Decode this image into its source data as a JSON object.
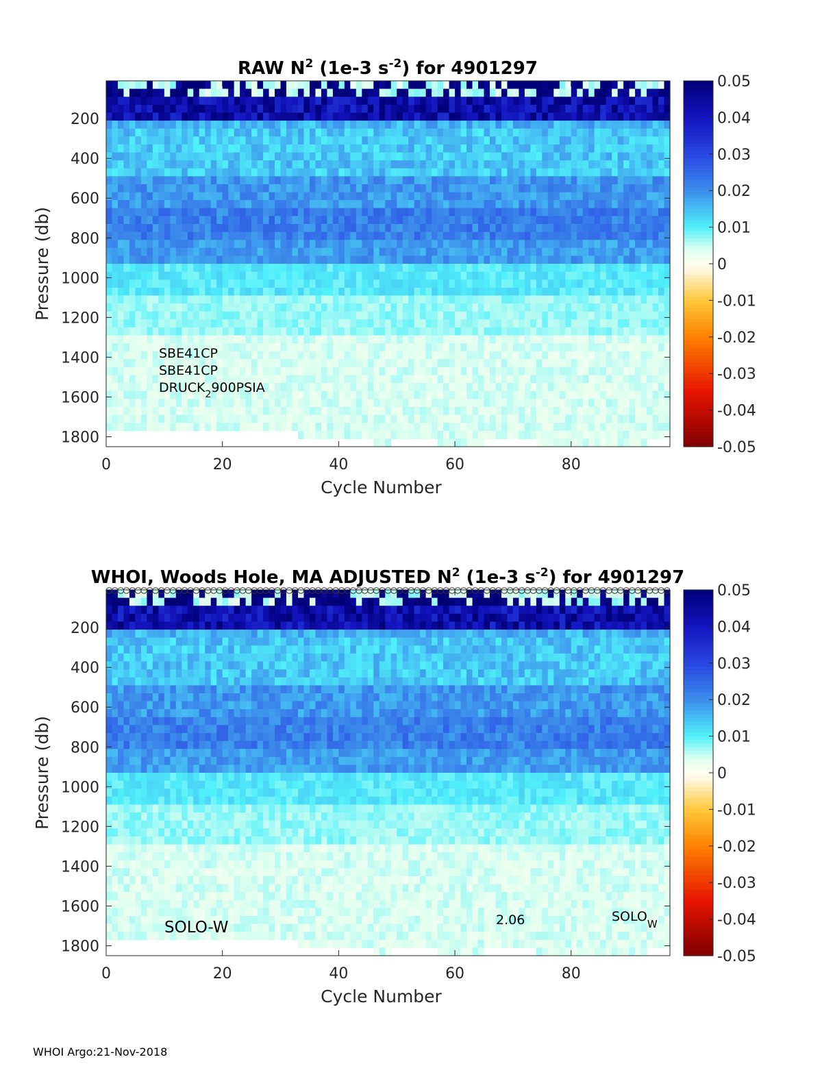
{
  "footer": "WHOI Argo:21-Nov-2018",
  "chart_data": [
    {
      "type": "heatmap",
      "title_parts": [
        "RAW N",
        "2",
        " (1e-3 s",
        "-2",
        ") for 4901297"
      ],
      "xlabel": "Cycle Number",
      "ylabel": "Pressure (db)",
      "xlim": [
        0,
        97
      ],
      "ylim": [
        1850,
        10
      ],
      "xticks": [
        "0",
        "20",
        "40",
        "60",
        "80"
      ],
      "yticks": [
        "200",
        "400",
        "600",
        "800",
        "1000",
        "1200",
        "1400",
        "1600",
        "1800"
      ],
      "colorbar_ticks": [
        "0.05",
        "0.04",
        "0.03",
        "0.02",
        "0.01",
        "0",
        "-0.01",
        "-0.02",
        "-0.03",
        "-0.04",
        "-0.05"
      ],
      "clim": [
        -0.05,
        0.05
      ],
      "colormap": "jet-like diverging (dark red - red - orange - white - cyan - blue - dark blue)",
      "annotations": [
        "SBE41CP",
        "SBE41CP",
        "DRUCK",
        "2",
        "900PSIA"
      ],
      "profile_summary": [
        {
          "pressure_range": [
            10,
            80
          ],
          "n2": "mixed, many near 0 (surface layer)"
        },
        {
          "pressure_range": [
            80,
            200
          ],
          "n2": 0.042
        },
        {
          "pressure_range": [
            200,
            500
          ],
          "n2": 0.014
        },
        {
          "pressure_range": [
            500,
            900
          ],
          "n2": 0.018
        },
        {
          "pressure_range": [
            900,
            1200
          ],
          "n2": 0.009
        },
        {
          "pressure_range": [
            1200,
            1750
          ],
          "n2": 0.004
        }
      ]
    },
    {
      "type": "heatmap",
      "title_parts": [
        "WHOI, Woods Hole, MA  ADJUSTED N",
        "2",
        " (1e-3 s",
        "-2",
        ") for 4901297"
      ],
      "xlabel": "Cycle Number",
      "ylabel": "Pressure (db)",
      "xlim": [
        0,
        97
      ],
      "ylim": [
        1850,
        10
      ],
      "xticks": [
        "0",
        "20",
        "40",
        "60",
        "80"
      ],
      "yticks": [
        "200",
        "400",
        "600",
        "800",
        "1000",
        "1200",
        "1400",
        "1600",
        "1800"
      ],
      "colorbar_ticks": [
        "0.05",
        "0.04",
        "0.03",
        "0.02",
        "0.01",
        "0",
        "-0.01",
        "-0.02",
        "-0.03",
        "-0.04",
        "-0.05"
      ],
      "clim": [
        -0.05,
        0.05
      ],
      "colormap": "jet-like diverging (dark red - red - orange - white - cyan - blue - dark blue)",
      "annotations": [
        "SOLO-W",
        "2.06",
        "SOLO",
        "W"
      ],
      "has_surface_markers": true,
      "profile_summary": [
        {
          "pressure_range": [
            10,
            80
          ],
          "n2": "mixed, many near 0 (surface layer)"
        },
        {
          "pressure_range": [
            80,
            200
          ],
          "n2": 0.042
        },
        {
          "pressure_range": [
            200,
            500
          ],
          "n2": 0.014
        },
        {
          "pressure_range": [
            500,
            900
          ],
          "n2": 0.018
        },
        {
          "pressure_range": [
            900,
            1200
          ],
          "n2": 0.009
        },
        {
          "pressure_range": [
            1200,
            1750
          ],
          "n2": 0.004
        }
      ]
    }
  ]
}
